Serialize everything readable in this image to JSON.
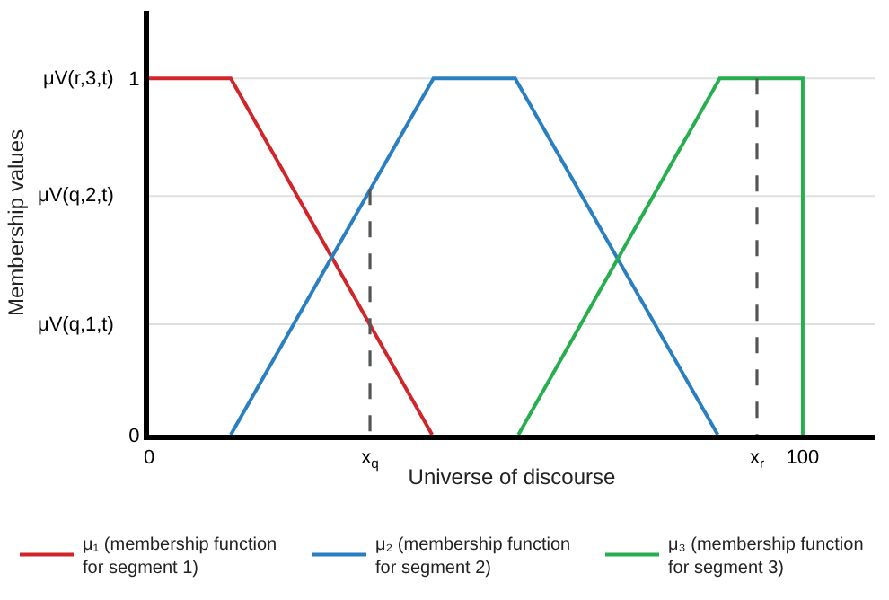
{
  "chart_data": {
    "type": "line",
    "xlabel": "Universe of discourse",
    "ylabel": "Membership values",
    "xlim": [
      0,
      111
    ],
    "ylim": [
      0,
      1.19
    ],
    "xticks": [
      0,
      {
        "value": 33.8,
        "label": "x$_{q}$"
      },
      {
        "value": 93,
        "label": "x$_{r}$"
      },
      100
    ],
    "yticks": [
      0,
      1
    ],
    "ref_lines": [
      {
        "axis": "y",
        "value": 0.31,
        "label": "μV(q,1,t)",
        "color": "#e0e0e0"
      },
      {
        "axis": "y",
        "value": 0.67,
        "label": "μV(q,2,t)",
        "color": "#e0e0e0"
      },
      {
        "axis": "y",
        "value": 1,
        "label": "μV(r,3,t)",
        "color": "#e0e0e0"
      }
    ],
    "legend": "bottom",
    "line_style": "solid",
    "marker": "none",
    "series": [
      {
        "name": "μ₁ (membership function\nfor segment 1)",
        "color": "#d0262b",
        "x": [
          0,
          12.5,
          43.3
        ],
        "values": [
          1,
          1,
          0
        ]
      },
      {
        "name": "μ₂ (membership function\nfor segment 2)",
        "color": "#2a7fc1",
        "x": [
          12.5,
          43.5,
          56,
          87
        ],
        "values": [
          0,
          1,
          1,
          0
        ]
      },
      {
        "name": "μ₃ (membership function\nfor segment 3)",
        "color": "#27ae4f",
        "x": [
          56.5,
          87.3,
          100,
          100
        ],
        "values": [
          0,
          1,
          1,
          0
        ]
      },
      {
        "color": "#555555",
        "line_style": "dashed",
        "x": [
          33.8,
          33.8
        ],
        "values": [
          0.69,
          0
        ]
      },
      {
        "color": "#555555",
        "line_style": "dashed",
        "x": [
          93,
          93
        ],
        "values": [
          1,
          0
        ]
      }
    ]
  }
}
